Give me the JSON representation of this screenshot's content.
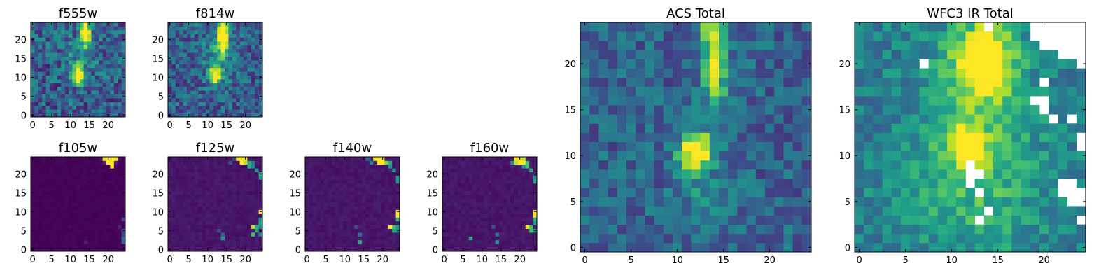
{
  "chart_data": [
    {
      "type": "heatmap",
      "title": "f555w",
      "size": 25,
      "colormap": "viridis",
      "xticks": [
        "0",
        "5",
        "10",
        "15",
        "20"
      ],
      "yticks": [
        "0",
        "5",
        "10",
        "15",
        "20"
      ],
      "xlim": [
        -0.5,
        24.5
      ],
      "ylim": [
        -0.5,
        24.5
      ],
      "features": [
        [
          12,
          10.5,
          1.0,
          1.6,
          1.0
        ],
        [
          14,
          22,
          0.8,
          2.5,
          0.95
        ],
        [
          13,
          16,
          3,
          4,
          0.2
        ]
      ],
      "noise": 0.45,
      "base": 0.3,
      "seed": 11,
      "nan_cells": []
    },
    {
      "type": "heatmap",
      "title": "f814w",
      "size": 25,
      "colormap": "viridis",
      "xticks": [
        "0",
        "5",
        "10",
        "15",
        "20"
      ],
      "yticks": [
        "0",
        "5",
        "10",
        "15",
        "20"
      ],
      "xlim": [
        -0.5,
        24.5
      ],
      "ylim": [
        -0.5,
        24.5
      ],
      "features": [
        [
          12,
          10.5,
          1.0,
          1.4,
          1.0
        ],
        [
          14,
          21,
          0.9,
          2.8,
          0.9
        ],
        [
          13,
          16,
          3,
          5,
          0.25
        ]
      ],
      "noise": 0.4,
      "base": 0.3,
      "seed": 23,
      "nan_cells": []
    },
    {
      "type": "heatmap",
      "title": "f105w",
      "size": 25,
      "colormap": "viridis",
      "xticks": [
        "0",
        "5",
        "10",
        "15",
        "20"
      ],
      "yticks": [
        "0",
        "5",
        "10",
        "15",
        "20"
      ],
      "xlim": [
        -0.5,
        24.5
      ],
      "ylim": [
        -0.5,
        24.5
      ],
      "features": [
        [
          20.5,
          24,
          1.0,
          0.6,
          1.0
        ]
      ],
      "noise": 0.02,
      "base": 0.01,
      "seed": 5,
      "hot_cells": [
        [
          19,
          24,
          1.0
        ],
        [
          20,
          24,
          1.0
        ],
        [
          21,
          24,
          1.0
        ],
        [
          22,
          24,
          1.0
        ],
        [
          20,
          23,
          1.0
        ],
        [
          21,
          23,
          1.0
        ],
        [
          21,
          22,
          1.0
        ],
        [
          24,
          8,
          0.2
        ],
        [
          24,
          5,
          0.25
        ],
        [
          24,
          4,
          0.2
        ],
        [
          24,
          3,
          0.35
        ],
        [
          24,
          2,
          0.3
        ],
        [
          23,
          6,
          0.1
        ],
        [
          14,
          2,
          0.08
        ]
      ],
      "nan_cells": []
    },
    {
      "type": "heatmap",
      "title": "f125w",
      "size": 25,
      "colormap": "viridis",
      "xticks": [
        "0",
        "5",
        "10",
        "15",
        "20"
      ],
      "yticks": [
        "0",
        "5",
        "10",
        "15",
        "20"
      ],
      "xlim": [
        -0.5,
        24.5
      ],
      "ylim": [
        -0.5,
        24.5
      ],
      "features": [],
      "noise": 0.05,
      "base": 0.06,
      "seed": 31,
      "hot_cells": [
        [
          18,
          24,
          1.0
        ],
        [
          19,
          24,
          1.0
        ],
        [
          20,
          24,
          1.0
        ],
        [
          19,
          23,
          1.0
        ],
        [
          20,
          23,
          0.9
        ],
        [
          21,
          23,
          0.6
        ],
        [
          21,
          22,
          0.6
        ],
        [
          22,
          22,
          0.45
        ],
        [
          22,
          23,
          0.4
        ],
        [
          23,
          21,
          0.5
        ],
        [
          24,
          20,
          0.6
        ],
        [
          24,
          19,
          0.5
        ],
        [
          24,
          10,
          1.0
        ],
        [
          24,
          8,
          0.55
        ],
        [
          24,
          7,
          0.6
        ],
        [
          24,
          6,
          0.5
        ],
        [
          23,
          6,
          0.6
        ],
        [
          22,
          6,
          0.9
        ],
        [
          23,
          5,
          0.6
        ],
        [
          22,
          4,
          0.7
        ],
        [
          24,
          4,
          0.5
        ],
        [
          14,
          4,
          0.3
        ],
        [
          14,
          3,
          0.55
        ],
        [
          13,
          5,
          0.25
        ],
        [
          17,
          24,
          0.2
        ],
        [
          16,
          23,
          0.25
        ]
      ],
      "nan_cells": []
    },
    {
      "type": "heatmap",
      "title": "f140w",
      "size": 25,
      "colormap": "viridis",
      "xticks": [
        "0",
        "5",
        "10",
        "15",
        "20"
      ],
      "yticks": [
        "0",
        "5",
        "10",
        "15",
        "20"
      ],
      "xlim": [
        -0.5,
        24.5
      ],
      "ylim": [
        -0.5,
        24.5
      ],
      "features": [],
      "noise": 0.05,
      "base": 0.06,
      "seed": 37,
      "hot_cells": [
        [
          18,
          24,
          1.0
        ],
        [
          19,
          24,
          1.0
        ],
        [
          20,
          24,
          1.0
        ],
        [
          19,
          23,
          1.0
        ],
        [
          20,
          23,
          1.0
        ],
        [
          21,
          23,
          0.8
        ],
        [
          22,
          23,
          0.6
        ],
        [
          17,
          23,
          0.5
        ],
        [
          22,
          22,
          0.5
        ],
        [
          23,
          21,
          0.5
        ],
        [
          24,
          19,
          0.55
        ],
        [
          24,
          18,
          0.5
        ],
        [
          24,
          10,
          1.0
        ],
        [
          24,
          9,
          1.0
        ],
        [
          24,
          8,
          0.6
        ],
        [
          24,
          6,
          0.55
        ],
        [
          22,
          6,
          1.0
        ],
        [
          23,
          6,
          0.7
        ],
        [
          23,
          5,
          0.6
        ],
        [
          24,
          5,
          0.5
        ],
        [
          14,
          4,
          0.35
        ],
        [
          14,
          2,
          0.6
        ],
        [
          13,
          6,
          0.25
        ],
        [
          16,
          24,
          0.3
        ]
      ],
      "nan_cells": []
    },
    {
      "type": "heatmap",
      "title": "f160w",
      "size": 25,
      "colormap": "viridis",
      "xticks": [
        "0",
        "5",
        "10",
        "15",
        "20"
      ],
      "yticks": [
        "0",
        "5",
        "10",
        "15",
        "20"
      ],
      "xlim": [
        -0.5,
        24.5
      ],
      "ylim": [
        -0.5,
        24.5
      ],
      "features": [],
      "noise": 0.05,
      "base": 0.06,
      "seed": 41,
      "hot_cells": [
        [
          19,
          24,
          1.0
        ],
        [
          20,
          24,
          1.0
        ],
        [
          21,
          24,
          0.9
        ],
        [
          19,
          23,
          0.9
        ],
        [
          20,
          23,
          1.0
        ],
        [
          21,
          23,
          1.0
        ],
        [
          22,
          23,
          0.7
        ],
        [
          18,
          23,
          0.5
        ],
        [
          21,
          22,
          0.5
        ],
        [
          22,
          22,
          0.7
        ],
        [
          23,
          21,
          0.6
        ],
        [
          24,
          19,
          0.5
        ],
        [
          24,
          18,
          0.55
        ],
        [
          24,
          10,
          1.0
        ],
        [
          24,
          9,
          1.0
        ],
        [
          24,
          8,
          0.6
        ],
        [
          24,
          7,
          0.5
        ],
        [
          22,
          6,
          1.0
        ],
        [
          23,
          6,
          0.7
        ],
        [
          23,
          5,
          0.7
        ],
        [
          24,
          5,
          0.55
        ],
        [
          14,
          4,
          0.35
        ],
        [
          7,
          3,
          0.6
        ],
        [
          14,
          2,
          0.5
        ],
        [
          13,
          6,
          0.25
        ]
      ],
      "nan_cells": []
    },
    {
      "type": "heatmap",
      "title": "ACS Total",
      "size": 25,
      "colormap": "viridis",
      "xticks": [
        "0",
        "5",
        "10",
        "15",
        "20"
      ],
      "yticks": [
        "0",
        "5",
        "10",
        "15",
        "20"
      ],
      "xlim": [
        -0.5,
        24.5
      ],
      "ylim": [
        -0.5,
        24.5
      ],
      "features": [
        [
          12,
          10.5,
          1.1,
          1.3,
          1.0
        ],
        [
          14,
          20,
          0.9,
          3.0,
          0.75
        ],
        [
          14,
          24,
          1.0,
          0.8,
          0.35
        ],
        [
          12.5,
          6,
          2,
          4,
          0.15
        ]
      ],
      "noise": 0.32,
      "base": 0.32,
      "seed": 53,
      "nan_cells": []
    },
    {
      "type": "heatmap",
      "title": "WFC3 IR Total",
      "size": 25,
      "colormap": "viridis",
      "xticks": [
        "0",
        "5",
        "10",
        "15",
        "20"
      ],
      "yticks": [
        "0",
        "5",
        "10",
        "15",
        "20"
      ],
      "xlim": [
        -0.5,
        24.5
      ],
      "ylim": [
        -0.5,
        24.5
      ],
      "features": [
        [
          11.5,
          11,
          1.2,
          1.3,
          0.75
        ],
        [
          13.5,
          20.5,
          1.8,
          2.2,
          0.85
        ],
        [
          13,
          16,
          4,
          7,
          0.3
        ],
        [
          12,
          5,
          6,
          6,
          0.15
        ]
      ],
      "noise": 0.28,
      "base": 0.42,
      "seed": 67,
      "nan_cells": [
        [
          19,
          24
        ],
        [
          20,
          24
        ],
        [
          21,
          24
        ],
        [
          22,
          24
        ],
        [
          23,
          24
        ],
        [
          24,
          24
        ],
        [
          19,
          23
        ],
        [
          20,
          23
        ],
        [
          21,
          23
        ],
        [
          22,
          23
        ],
        [
          23,
          23
        ],
        [
          24,
          23
        ],
        [
          20,
          22
        ],
        [
          21,
          22
        ],
        [
          22,
          22
        ],
        [
          23,
          22
        ],
        [
          24,
          22
        ],
        [
          22,
          21
        ],
        [
          23,
          21
        ],
        [
          24,
          21
        ],
        [
          24,
          20
        ],
        [
          7,
          20
        ],
        [
          14,
          24
        ],
        [
          20,
          18
        ],
        [
          19,
          16
        ],
        [
          20,
          16
        ],
        [
          20,
          15
        ],
        [
          21,
          14
        ],
        [
          23,
          14
        ],
        [
          24,
          11
        ],
        [
          24,
          12
        ],
        [
          13,
          8
        ],
        [
          12,
          7
        ],
        [
          12,
          8
        ],
        [
          12,
          9
        ],
        [
          13,
          6
        ],
        [
          22,
          7
        ],
        [
          23,
          7
        ],
        [
          22,
          6
        ],
        [
          23,
          6
        ],
        [
          24,
          6
        ],
        [
          23,
          5
        ],
        [
          24,
          5
        ],
        [
          14,
          4
        ],
        [
          13,
          3
        ],
        [
          24,
          3
        ]
      ]
    }
  ]
}
